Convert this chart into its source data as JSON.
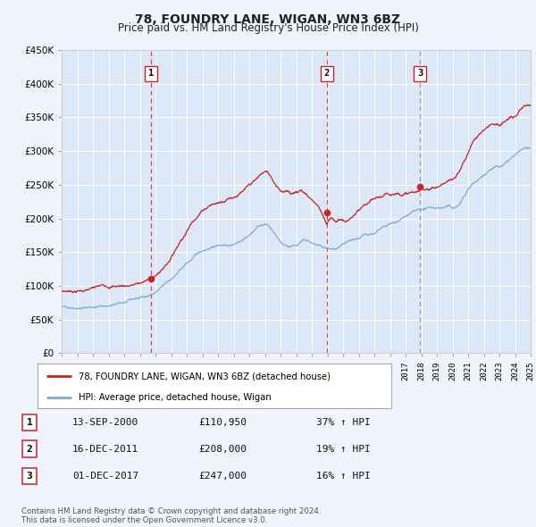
{
  "title": "78, FOUNDRY LANE, WIGAN, WN3 6BZ",
  "subtitle": "Price paid vs. HM Land Registry's House Price Index (HPI)",
  "background_color": "#f0f4ff",
  "plot_bg_color": "#dce8f8",
  "sale_dates": [
    2000.71,
    2011.96,
    2017.92
  ],
  "sale_prices": [
    110950,
    208000,
    247000
  ],
  "sale_labels": [
    "1",
    "2",
    "3"
  ],
  "vline_colors": [
    "#dd4444",
    "#dd4444",
    "#999999"
  ],
  "legend_label_red": "78, FOUNDRY LANE, WIGAN, WN3 6BZ (detached house)",
  "legend_label_blue": "HPI: Average price, detached house, Wigan",
  "table_rows": [
    [
      "1",
      "13-SEP-2000",
      "£110,950",
      "37% ↑ HPI"
    ],
    [
      "2",
      "16-DEC-2011",
      "£208,000",
      "19% ↑ HPI"
    ],
    [
      "3",
      "01-DEC-2017",
      "£247,000",
      "16% ↑ HPI"
    ]
  ],
  "footnote": "Contains HM Land Registry data © Crown copyright and database right 2024.\nThis data is licensed under the Open Government Licence v3.0.",
  "red_line_color": "#cc2222",
  "blue_line_color": "#7badd4",
  "marker_color": "#cc2222",
  "xmin": 1995,
  "xmax": 2025,
  "ylim": [
    0,
    450000
  ],
  "hpi_keypoints": [
    [
      1995.0,
      68000
    ],
    [
      1995.5,
      69000
    ],
    [
      1996.0,
      71000
    ],
    [
      1996.5,
      72000
    ],
    [
      1997.0,
      74000
    ],
    [
      1997.5,
      75500
    ],
    [
      1998.0,
      77000
    ],
    [
      1998.5,
      79000
    ],
    [
      1999.0,
      81000
    ],
    [
      1999.5,
      84000
    ],
    [
      2000.0,
      87000
    ],
    [
      2000.5,
      91000
    ],
    [
      2001.0,
      96000
    ],
    [
      2001.5,
      105000
    ],
    [
      2002.0,
      115000
    ],
    [
      2002.5,
      126000
    ],
    [
      2003.0,
      138000
    ],
    [
      2003.5,
      148000
    ],
    [
      2004.0,
      157000
    ],
    [
      2004.5,
      163000
    ],
    [
      2005.0,
      167000
    ],
    [
      2005.5,
      170000
    ],
    [
      2006.0,
      174000
    ],
    [
      2006.5,
      180000
    ],
    [
      2007.0,
      188000
    ],
    [
      2007.5,
      198000
    ],
    [
      2008.0,
      205000
    ],
    [
      2008.25,
      202000
    ],
    [
      2008.5,
      196000
    ],
    [
      2008.75,
      188000
    ],
    [
      2009.0,
      180000
    ],
    [
      2009.25,
      176000
    ],
    [
      2009.5,
      174000
    ],
    [
      2009.75,
      176000
    ],
    [
      2010.0,
      178000
    ],
    [
      2010.25,
      182000
    ],
    [
      2010.5,
      185000
    ],
    [
      2010.75,
      183000
    ],
    [
      2011.0,
      180000
    ],
    [
      2011.25,
      178000
    ],
    [
      2011.5,
      175000
    ],
    [
      2011.75,
      173000
    ],
    [
      2012.0,
      171000
    ],
    [
      2012.25,
      170000
    ],
    [
      2012.5,
      169000
    ],
    [
      2012.75,
      170000
    ],
    [
      2013.0,
      172000
    ],
    [
      2013.25,
      174000
    ],
    [
      2013.5,
      176000
    ],
    [
      2013.75,
      178000
    ],
    [
      2014.0,
      180000
    ],
    [
      2014.25,
      183000
    ],
    [
      2014.5,
      185000
    ],
    [
      2014.75,
      187000
    ],
    [
      2015.0,
      188000
    ],
    [
      2015.25,
      191000
    ],
    [
      2015.5,
      194000
    ],
    [
      2015.75,
      196000
    ],
    [
      2016.0,
      198000
    ],
    [
      2016.25,
      200000
    ],
    [
      2016.5,
      203000
    ],
    [
      2016.75,
      207000
    ],
    [
      2017.0,
      210000
    ],
    [
      2017.25,
      213000
    ],
    [
      2017.5,
      215000
    ],
    [
      2017.75,
      216000
    ],
    [
      2018.0,
      217000
    ],
    [
      2018.25,
      218000
    ],
    [
      2018.5,
      219000
    ],
    [
      2018.75,
      220000
    ],
    [
      2019.0,
      220000
    ],
    [
      2019.25,
      221000
    ],
    [
      2019.5,
      222000
    ],
    [
      2019.75,
      223000
    ],
    [
      2020.0,
      220000
    ],
    [
      2020.25,
      222000
    ],
    [
      2020.5,
      228000
    ],
    [
      2020.75,
      238000
    ],
    [
      2021.0,
      248000
    ],
    [
      2021.25,
      255000
    ],
    [
      2021.5,
      260000
    ],
    [
      2021.75,
      265000
    ],
    [
      2022.0,
      270000
    ],
    [
      2022.25,
      278000
    ],
    [
      2022.5,
      283000
    ],
    [
      2022.75,
      285000
    ],
    [
      2023.0,
      284000
    ],
    [
      2023.25,
      286000
    ],
    [
      2023.5,
      290000
    ],
    [
      2023.75,
      295000
    ],
    [
      2024.0,
      298000
    ],
    [
      2024.25,
      302000
    ],
    [
      2024.5,
      306000
    ],
    [
      2024.75,
      308000
    ],
    [
      2025.0,
      305000
    ]
  ],
  "red_keypoints": [
    [
      1995.0,
      92000
    ],
    [
      1995.5,
      93000
    ],
    [
      1996.0,
      94000
    ],
    [
      1996.5,
      95500
    ],
    [
      1997.0,
      97000
    ],
    [
      1997.5,
      98500
    ],
    [
      1998.0,
      100000
    ],
    [
      1998.5,
      101000
    ],
    [
      1999.0,
      102000
    ],
    [
      1999.5,
      104000
    ],
    [
      2000.0,
      106000
    ],
    [
      2000.4,
      109000
    ],
    [
      2000.71,
      110950
    ],
    [
      2001.0,
      116000
    ],
    [
      2001.5,
      128000
    ],
    [
      2002.0,
      145000
    ],
    [
      2002.5,
      168000
    ],
    [
      2003.0,
      188000
    ],
    [
      2003.5,
      208000
    ],
    [
      2004.0,
      222000
    ],
    [
      2004.5,
      232000
    ],
    [
      2005.0,
      235000
    ],
    [
      2005.25,
      238000
    ],
    [
      2005.5,
      242000
    ],
    [
      2005.75,
      246000
    ],
    [
      2006.0,
      248000
    ],
    [
      2006.25,
      252000
    ],
    [
      2006.5,
      255000
    ],
    [
      2006.75,
      258000
    ],
    [
      2007.0,
      262000
    ],
    [
      2007.25,
      266000
    ],
    [
      2007.5,
      270000
    ],
    [
      2007.75,
      276000
    ],
    [
      2008.0,
      280000
    ],
    [
      2008.1,
      279000
    ],
    [
      2008.2,
      277000
    ],
    [
      2008.3,
      274000
    ],
    [
      2008.4,
      272000
    ],
    [
      2008.5,
      268000
    ],
    [
      2008.6,
      265000
    ],
    [
      2008.7,
      262000
    ],
    [
      2008.8,
      260000
    ],
    [
      2008.9,
      258000
    ],
    [
      2009.0,
      256000
    ],
    [
      2009.1,
      254000
    ],
    [
      2009.2,
      253000
    ],
    [
      2009.3,
      252000
    ],
    [
      2009.4,
      253000
    ],
    [
      2009.5,
      254000
    ],
    [
      2009.6,
      252000
    ],
    [
      2009.7,
      251000
    ],
    [
      2009.8,
      252000
    ],
    [
      2009.9,
      254000
    ],
    [
      2010.0,
      255000
    ],
    [
      2010.1,
      254000
    ],
    [
      2010.2,
      256000
    ],
    [
      2010.3,
      257000
    ],
    [
      2010.4,
      255000
    ],
    [
      2010.5,
      254000
    ],
    [
      2010.6,
      252000
    ],
    [
      2010.7,
      250000
    ],
    [
      2010.8,
      248000
    ],
    [
      2010.9,
      246000
    ],
    [
      2011.0,
      244000
    ],
    [
      2011.1,
      242000
    ],
    [
      2011.2,
      240000
    ],
    [
      2011.3,
      238000
    ],
    [
      2011.4,
      235000
    ],
    [
      2011.5,
      232000
    ],
    [
      2011.6,
      228000
    ],
    [
      2011.7,
      224000
    ],
    [
      2011.8,
      218000
    ],
    [
      2011.9,
      212000
    ],
    [
      2011.96,
      208000
    ],
    [
      2012.0,
      210000
    ],
    [
      2012.1,
      214000
    ],
    [
      2012.2,
      216000
    ],
    [
      2012.3,
      215000
    ],
    [
      2012.4,
      214000
    ],
    [
      2012.5,
      213000
    ],
    [
      2012.6,
      212000
    ],
    [
      2012.7,
      214000
    ],
    [
      2012.8,
      215000
    ],
    [
      2012.9,
      216000
    ],
    [
      2013.0,
      215000
    ],
    [
      2013.1,
      213000
    ],
    [
      2013.2,
      212000
    ],
    [
      2013.3,
      213000
    ],
    [
      2013.4,
      215000
    ],
    [
      2013.5,
      216000
    ],
    [
      2013.6,
      218000
    ],
    [
      2013.7,
      220000
    ],
    [
      2013.8,
      222000
    ],
    [
      2013.9,
      224000
    ],
    [
      2014.0,
      225000
    ],
    [
      2014.2,
      228000
    ],
    [
      2014.4,
      230000
    ],
    [
      2014.6,
      232000
    ],
    [
      2014.8,
      234000
    ],
    [
      2015.0,
      235000
    ],
    [
      2015.2,
      237000
    ],
    [
      2015.4,
      238000
    ],
    [
      2015.6,
      239000
    ],
    [
      2015.8,
      240000
    ],
    [
      2016.0,
      241000
    ],
    [
      2016.2,
      243000
    ],
    [
      2016.4,
      244000
    ],
    [
      2016.6,
      245000
    ],
    [
      2016.8,
      246000
    ],
    [
      2017.0,
      246000
    ],
    [
      2017.2,
      246500
    ],
    [
      2017.4,
      247000
    ],
    [
      2017.6,
      247000
    ],
    [
      2017.8,
      247000
    ],
    [
      2017.92,
      247000
    ],
    [
      2018.0,
      248000
    ],
    [
      2018.2,
      250000
    ],
    [
      2018.4,
      252000
    ],
    [
      2018.6,
      253000
    ],
    [
      2018.8,
      254000
    ],
    [
      2019.0,
      255000
    ],
    [
      2019.2,
      257000
    ],
    [
      2019.4,
      260000
    ],
    [
      2019.6,
      262000
    ],
    [
      2019.8,
      263000
    ],
    [
      2020.0,
      262000
    ],
    [
      2020.2,
      265000
    ],
    [
      2020.4,
      272000
    ],
    [
      2020.6,
      282000
    ],
    [
      2020.8,
      292000
    ],
    [
      2021.0,
      302000
    ],
    [
      2021.2,
      314000
    ],
    [
      2021.4,
      322000
    ],
    [
      2021.6,
      328000
    ],
    [
      2021.8,
      332000
    ],
    [
      2022.0,
      335000
    ],
    [
      2022.2,
      340000
    ],
    [
      2022.4,
      345000
    ],
    [
      2022.6,
      348000
    ],
    [
      2022.8,
      350000
    ],
    [
      2023.0,
      348000
    ],
    [
      2023.2,
      350000
    ],
    [
      2023.4,
      352000
    ],
    [
      2023.6,
      354000
    ],
    [
      2023.8,
      356000
    ],
    [
      2024.0,
      357000
    ],
    [
      2024.2,
      360000
    ],
    [
      2024.4,
      364000
    ],
    [
      2024.6,
      368000
    ],
    [
      2024.8,
      370000
    ],
    [
      2025.0,
      368000
    ]
  ]
}
